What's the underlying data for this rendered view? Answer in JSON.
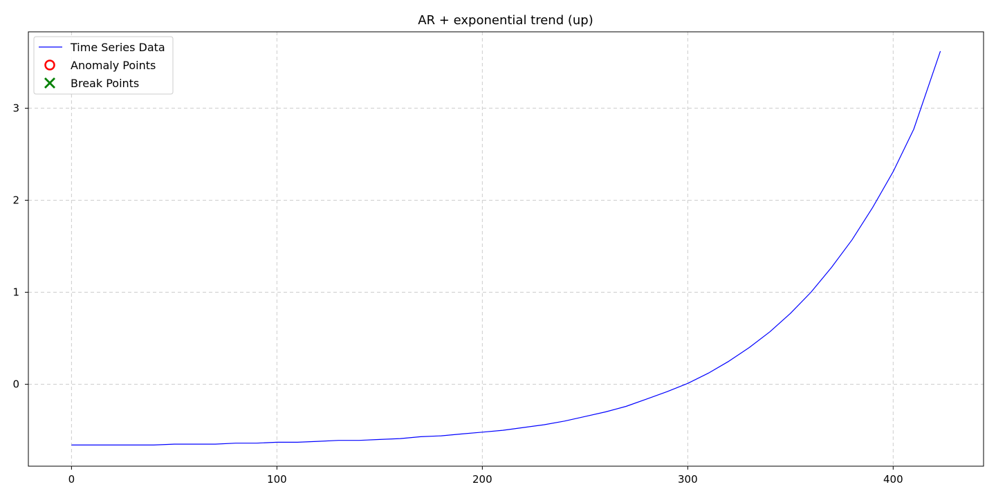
{
  "chart_data": {
    "type": "line",
    "title": "AR + exponential trend (up)",
    "xlabel": "",
    "ylabel": "",
    "xlim": [
      -21,
      444
    ],
    "ylim": [
      -0.89,
      3.83
    ],
    "xticks": [
      0,
      100,
      200,
      300,
      400
    ],
    "yticks": [
      0,
      1,
      2,
      3
    ],
    "grid": true,
    "legend": {
      "placement": "top-left",
      "entries": [
        {
          "label": "Time Series Data",
          "kind": "line",
          "color": "#0000ff"
        },
        {
          "label": "Anomaly Points",
          "kind": "circle",
          "color": "#ff0000"
        },
        {
          "label": "Break Points",
          "kind": "x",
          "color": "#008000"
        }
      ]
    },
    "series": [
      {
        "name": "Time Series Data",
        "color": "#0000ff",
        "x": [
          0,
          10,
          20,
          30,
          40,
          50,
          60,
          70,
          80,
          90,
          100,
          110,
          120,
          130,
          140,
          150,
          160,
          170,
          180,
          190,
          200,
          210,
          220,
          230,
          240,
          250,
          260,
          270,
          280,
          290,
          300,
          310,
          320,
          330,
          340,
          350,
          360,
          370,
          380,
          390,
          400,
          410,
          423
        ],
        "y": [
          -0.66,
          -0.66,
          -0.66,
          -0.66,
          -0.66,
          -0.65,
          -0.65,
          -0.65,
          -0.64,
          -0.64,
          -0.63,
          -0.63,
          -0.62,
          -0.61,
          -0.61,
          -0.6,
          -0.59,
          -0.57,
          -0.56,
          -0.54,
          -0.52,
          -0.5,
          -0.47,
          -0.44,
          -0.4,
          -0.35,
          -0.3,
          -0.24,
          -0.16,
          -0.08,
          0.01,
          0.12,
          0.25,
          0.4,
          0.57,
          0.77,
          1.0,
          1.27,
          1.57,
          1.92,
          2.31,
          2.77,
          3.62
        ]
      }
    ],
    "anomaly_points": [],
    "break_points": []
  }
}
